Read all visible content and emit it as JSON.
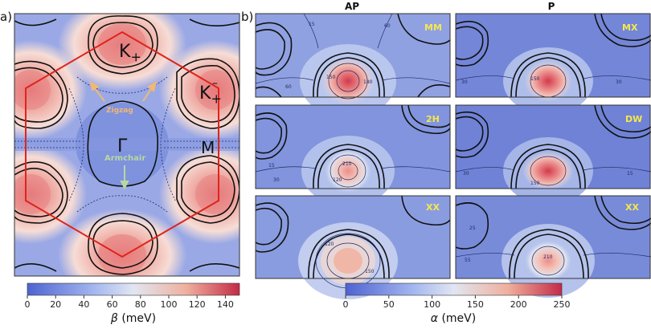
{
  "panel_a": {
    "label": "a)",
    "points": {
      "k_plus": "K",
      "k_plus_sub": "+",
      "k_minus": "K",
      "k_minus_sup": "–",
      "k_minus_sub": "+",
      "gamma": "Γ",
      "m": "M"
    },
    "annotations": {
      "zigzag": "Zigzag",
      "armchair": "Armchair"
    },
    "colorbar": {
      "var": "β",
      "unit": "(meV)",
      "ticks": [
        "0",
        "20",
        "40",
        "60",
        "80",
        "100",
        "120",
        "140"
      ],
      "min": 0,
      "max": 150
    }
  },
  "panel_b": {
    "label": "b)",
    "columns": {
      "left": "AP",
      "right": "P"
    },
    "subplots": [
      {
        "tag": "MM",
        "contours": [
          "60",
          "15",
          "60",
          "150",
          "180"
        ]
      },
      {
        "tag": "MX",
        "contours": [
          "30",
          "30",
          "150"
        ]
      },
      {
        "tag": "2H",
        "contours": [
          "15",
          "30",
          "210",
          "120"
        ]
      },
      {
        "tag": "DW",
        "contours": [
          "30",
          "15",
          "150"
        ]
      },
      {
        "tag": "XX",
        "contours": [
          "120",
          "150"
        ]
      },
      {
        "tag": "XX",
        "contours": [
          "25",
          "55",
          "210"
        ]
      }
    ],
    "colorbar": {
      "var": "α",
      "unit": "(meV)",
      "ticks": [
        "0",
        "50",
        "100",
        "150",
        "200",
        "250"
      ],
      "min": 0,
      "max": 250
    }
  },
  "colors": {
    "cold": "#5b6fd6",
    "mid": "#e3e8f5",
    "hot": "#d23a4c",
    "hexagon": "#e0241c",
    "arrow": "#f0b872",
    "label_yellow": "#f5e84a",
    "armchair": "#b8d8a0"
  }
}
